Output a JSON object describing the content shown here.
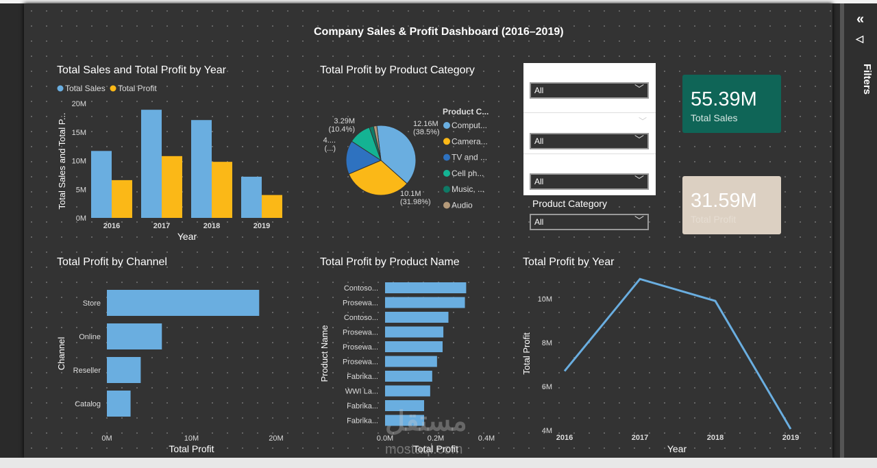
{
  "dashboard_title": "Company Sales & Profit Dashboard (2016–2019)",
  "filters_pane": {
    "label": "Filters",
    "collapse_icon": "double-chevron-left-icon",
    "filter_icon": "funnel-icon"
  },
  "chart_data": [
    {
      "type": "bar",
      "title": "Total Sales and Total Profit by Year",
      "xlabel": "Year",
      "ylabel": "Total Sales and Total P...",
      "categories": [
        "2016",
        "2017",
        "2018",
        "2019"
      ],
      "series": [
        {
          "name": "Total Sales",
          "color": "#6aaee0",
          "values": [
            11.7,
            18.9,
            17.1,
            7.2
          ]
        },
        {
          "name": "Total Profit",
          "color": "#fbb817",
          "values": [
            6.6,
            10.8,
            9.8,
            4.0
          ]
        }
      ],
      "yticks": [
        "0M",
        "5M",
        "10M",
        "15M",
        "20M"
      ],
      "ylim": [
        0,
        20
      ],
      "unit": "M",
      "legend": "top-left"
    },
    {
      "type": "pie",
      "title": "Total Profit by Product Category",
      "legend_title": "Product C...",
      "slices": [
        {
          "name": "Comput...",
          "value": 12.16,
          "percent": 38.5,
          "label": "12.16M",
          "plabel": "(38.5%)",
          "color": "#6aaee0"
        },
        {
          "name": "Camera...",
          "value": 10.1,
          "percent": 31.98,
          "label": "10.1M",
          "plabel": "(31.98%)",
          "color": "#fbb817"
        },
        {
          "name": "TV and ...",
          "value": 4.9,
          "percent": 15.6,
          "label": "4....",
          "plabel": "(...)",
          "color": "#2e72c0"
        },
        {
          "name": "Cell ph...",
          "value": 3.29,
          "percent": 10.4,
          "label": "3.29M",
          "plabel": "(10.4%)",
          "color": "#14b393"
        },
        {
          "name": "Music, ...",
          "value": 0.63,
          "percent": 2.0,
          "label": "",
          "plabel": "",
          "color": "#0f7a66"
        },
        {
          "name": "Audio",
          "value": 0.47,
          "percent": 1.5,
          "label": "",
          "plabel": "",
          "color": "#b49a7a"
        }
      ],
      "legend": "right"
    },
    {
      "type": "bar",
      "orientation": "horizontal",
      "title": "Total Profit by Channel",
      "xlabel": "Total Profit",
      "ylabel": "Channel",
      "categories": [
        "Store",
        "Online",
        "Reseller",
        "Catalog"
      ],
      "values": [
        18.0,
        6.5,
        4.0,
        2.8
      ],
      "xticks": [
        "0M",
        "10M",
        "20M"
      ],
      "xlim": [
        0,
        20
      ],
      "unit": "M",
      "color": "#6aaee0"
    },
    {
      "type": "bar",
      "orientation": "horizontal",
      "title": "Total Profit by Product Name",
      "xlabel": "Total Profit",
      "ylabel": "Product Name",
      "categories": [
        "Contoso...",
        "Prosewa...",
        "Contoso...",
        "Prosewa...",
        "Prosewa...",
        "Prosewa...",
        "Fabrika...",
        "WWI La...",
        "Fabrika...",
        "Fabrika..."
      ],
      "values": [
        0.32,
        0.315,
        0.25,
        0.23,
        0.227,
        0.205,
        0.186,
        0.178,
        0.154,
        0.154
      ],
      "xticks": [
        "0.0M",
        "0.2M",
        "0.4M"
      ],
      "xlim": [
        0,
        0.4
      ],
      "unit": "M",
      "color": "#6aaee0"
    },
    {
      "type": "line",
      "title": "Total Profit by Year",
      "xlabel": "Year",
      "ylabel": "Total Profit",
      "x": [
        "2016",
        "2017",
        "2018",
        "2019"
      ],
      "values": [
        6.7,
        10.9,
        9.9,
        4.06
      ],
      "yticks": [
        "4M",
        "6M",
        "8M",
        "10M"
      ],
      "ylim": [
        4,
        11
      ],
      "color": "#6aaee0"
    }
  ],
  "slicers": [
    {
      "value": "All"
    },
    {
      "value": "All"
    },
    {
      "value": "All"
    },
    {
      "label": "Product Category",
      "value": "All"
    }
  ],
  "cards": [
    {
      "value": "55.39M",
      "label": "Total Sales",
      "color": "#0f6557"
    },
    {
      "value": "31.59M",
      "label": "Total Profit",
      "color": "#dcd0c2"
    }
  ],
  "watermark": {
    "arabic": "مستقل",
    "latin": "mostaql.com"
  }
}
